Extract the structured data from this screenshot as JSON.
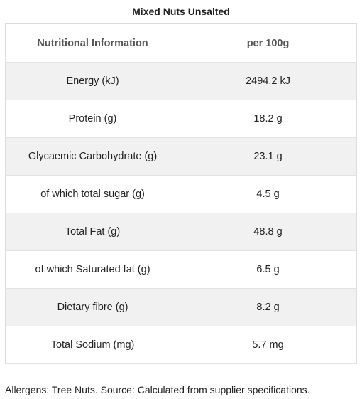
{
  "title": "Mixed Nuts Unsalted",
  "table": {
    "headers": [
      "Nutritional Information",
      "per 100g"
    ],
    "rows": [
      {
        "label": "Energy (kJ)",
        "value": "2494.2 kJ"
      },
      {
        "label": "Protein (g)",
        "value": "18.2 g"
      },
      {
        "label": "Glycaemic Carbohydrate (g)",
        "value": "23.1 g"
      },
      {
        "label": "of which total sugar (g)",
        "value": "4.5 g"
      },
      {
        "label": "Total Fat (g)",
        "value": "48.8 g"
      },
      {
        "label": "of which Saturated fat (g)",
        "value": "6.5 g"
      },
      {
        "label": "Dietary fibre (g)",
        "value": "8.2 g"
      },
      {
        "label": "Total Sodium (mg)",
        "value": "5.7 mg"
      }
    ]
  },
  "footnote": "Allergens: Tree Nuts. Source: Calculated from supplier specifications."
}
